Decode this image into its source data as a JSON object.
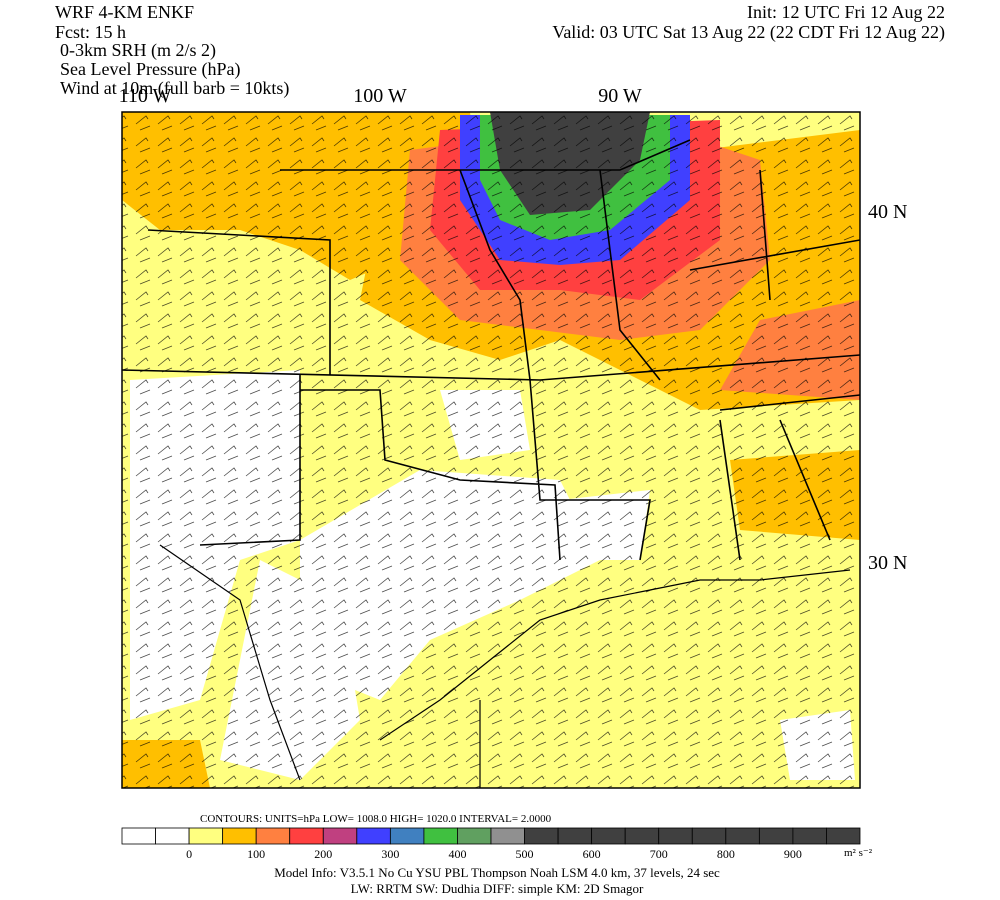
{
  "header": {
    "left": [
      "WRF 4-KM ENKF",
      "Fcst:   15 h",
      "0-3km SRH (m 2/s 2)",
      "Sea Level Pressure (hPa)",
      "Wind at 10m (full barb = 10kts)"
    ],
    "init": "Init: 12 UTC Fri 12 Aug 22",
    "valid": "Valid: 03 UTC Sat 13 Aug 22 (22 CDT Fri 12 Aug 22)"
  },
  "map": {
    "lon_labels": [
      "110 W",
      "100 W",
      "90 W"
    ],
    "lat_labels": [
      "40 N",
      "30 N"
    ]
  },
  "contours": "CONTOURS:  UNITS=hPa  LOW=   1008.0      HIGH=   1020.0      INTERVAL=    2.0000",
  "colorbar": {
    "colors": [
      "#ffffff",
      "#ffffff",
      "#ffff80",
      "#ffbf00",
      "#ff8040",
      "#ff4040",
      "#c04080",
      "#4040ff",
      "#4080c0",
      "#40c040",
      "#60a060",
      "#909090",
      "#404040",
      "#404040",
      "#404040",
      "#404040",
      "#404040",
      "#404040",
      "#404040",
      "#404040",
      "#404040",
      "#404040"
    ],
    "labels": [
      0,
      100,
      200,
      300,
      400,
      500,
      600,
      700,
      800,
      900
    ],
    "units": "m² s⁻²"
  },
  "footer": [
    "Model Info: V3.5.1    No Cu    YSU PBL  Thompson       Noah LSM  4.0 km,  37 levels,   24 sec",
    "LW: RRTM SW: Dudhia  DIFF: simple KM: 2D Smagor"
  ]
}
